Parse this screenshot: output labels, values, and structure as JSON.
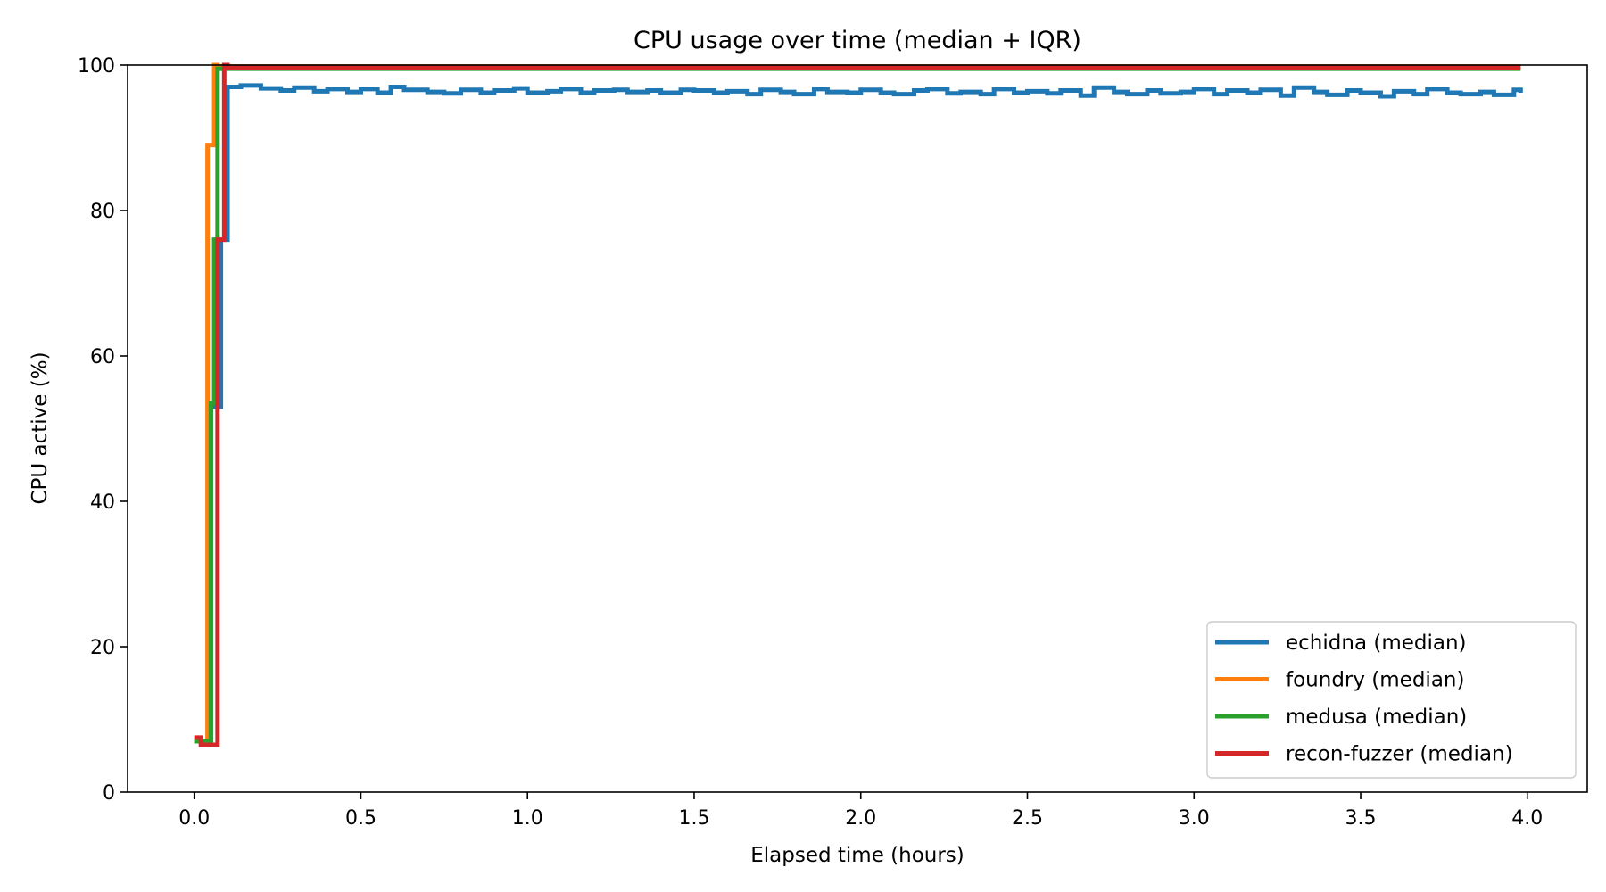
{
  "chart_data": {
    "type": "line",
    "title": "CPU usage over time (median + IQR)",
    "xlabel": "Elapsed time (hours)",
    "ylabel": "CPU active (%)",
    "xlim": [
      -0.2,
      4.18
    ],
    "ylim": [
      0,
      100
    ],
    "xticks": [
      0.0,
      0.5,
      1.0,
      1.5,
      2.0,
      2.5,
      3.0,
      3.5,
      4.0
    ],
    "xtick_labels": [
      "0.0",
      "0.5",
      "1.0",
      "1.5",
      "2.0",
      "2.5",
      "3.0",
      "3.5",
      "4.0"
    ],
    "yticks": [
      0,
      20,
      40,
      60,
      80,
      100
    ],
    "ytick_labels": [
      "0",
      "20",
      "40",
      "60",
      "80",
      "100"
    ],
    "grid": false,
    "legend_position": "bottom-right",
    "step": true,
    "series": [
      {
        "name": "echidna (median)",
        "color": "#1f77b4",
        "x": [
          0.0,
          0.03,
          0.05,
          0.08,
          0.1,
          0.14,
          0.2,
          0.26,
          0.3,
          0.36,
          0.4,
          0.46,
          0.5,
          0.55,
          0.59,
          0.63,
          0.7,
          0.75,
          0.8,
          0.86,
          0.9,
          0.96,
          1.0,
          1.06,
          1.1,
          1.16,
          1.2,
          1.26,
          1.3,
          1.36,
          1.4,
          1.46,
          1.5,
          1.56,
          1.6,
          1.66,
          1.7,
          1.76,
          1.8,
          1.86,
          1.9,
          1.96,
          2.0,
          2.06,
          2.1,
          2.16,
          2.2,
          2.26,
          2.3,
          2.36,
          2.4,
          2.46,
          2.5,
          2.56,
          2.6,
          2.66,
          2.7,
          2.76,
          2.8,
          2.86,
          2.9,
          2.96,
          3.0,
          3.06,
          3.1,
          3.16,
          3.2,
          3.26,
          3.3,
          3.36,
          3.4,
          3.46,
          3.5,
          3.56,
          3.6,
          3.66,
          3.7,
          3.76,
          3.8,
          3.86,
          3.9,
          3.96,
          3.98
        ],
        "values": [
          7.0,
          7.0,
          53.0,
          76.0,
          97.0,
          97.2,
          96.8,
          96.5,
          96.9,
          96.4,
          96.7,
          96.3,
          96.7,
          96.2,
          97.0,
          96.6,
          96.3,
          96.1,
          96.6,
          96.2,
          96.5,
          96.8,
          96.2,
          96.4,
          96.7,
          96.2,
          96.5,
          96.6,
          96.3,
          96.5,
          96.2,
          96.6,
          96.5,
          96.2,
          96.4,
          96.0,
          96.6,
          96.3,
          96.0,
          96.7,
          96.3,
          96.2,
          96.6,
          96.2,
          96.0,
          96.5,
          96.7,
          96.1,
          96.3,
          96.0,
          96.7,
          96.2,
          96.4,
          96.1,
          96.5,
          95.8,
          96.9,
          96.3,
          96.0,
          96.5,
          96.1,
          96.3,
          96.7,
          96.0,
          96.5,
          96.2,
          96.6,
          95.8,
          96.9,
          96.3,
          95.9,
          96.5,
          96.2,
          95.7,
          96.4,
          96.0,
          96.7,
          96.2,
          96.0,
          96.3,
          95.9,
          96.6,
          96.2
        ]
      },
      {
        "name": "foundry (median)",
        "color": "#ff7f0e",
        "x": [
          0.0,
          0.03,
          0.04,
          0.05,
          0.06,
          0.07,
          0.1,
          3.98
        ],
        "values": [
          7.0,
          7.0,
          89.0,
          89.0,
          100.0,
          99.8,
          99.8,
          99.8
        ]
      },
      {
        "name": "medusa (median)",
        "color": "#2ca02c",
        "x": [
          0.0,
          0.03,
          0.05,
          0.06,
          0.07,
          0.08,
          0.1,
          3.98
        ],
        "values": [
          7.0,
          7.0,
          53.5,
          76.0,
          99.5,
          99.5,
          99.5,
          99.5
        ]
      },
      {
        "name": "recon-fuzzer (median)",
        "color": "#d62728",
        "x": [
          0.0,
          0.02,
          0.07,
          0.08,
          0.09,
          0.1,
          3.98
        ],
        "values": [
          7.5,
          6.5,
          76.0,
          76.0,
          100.0,
          99.7,
          99.7
        ]
      }
    ]
  }
}
